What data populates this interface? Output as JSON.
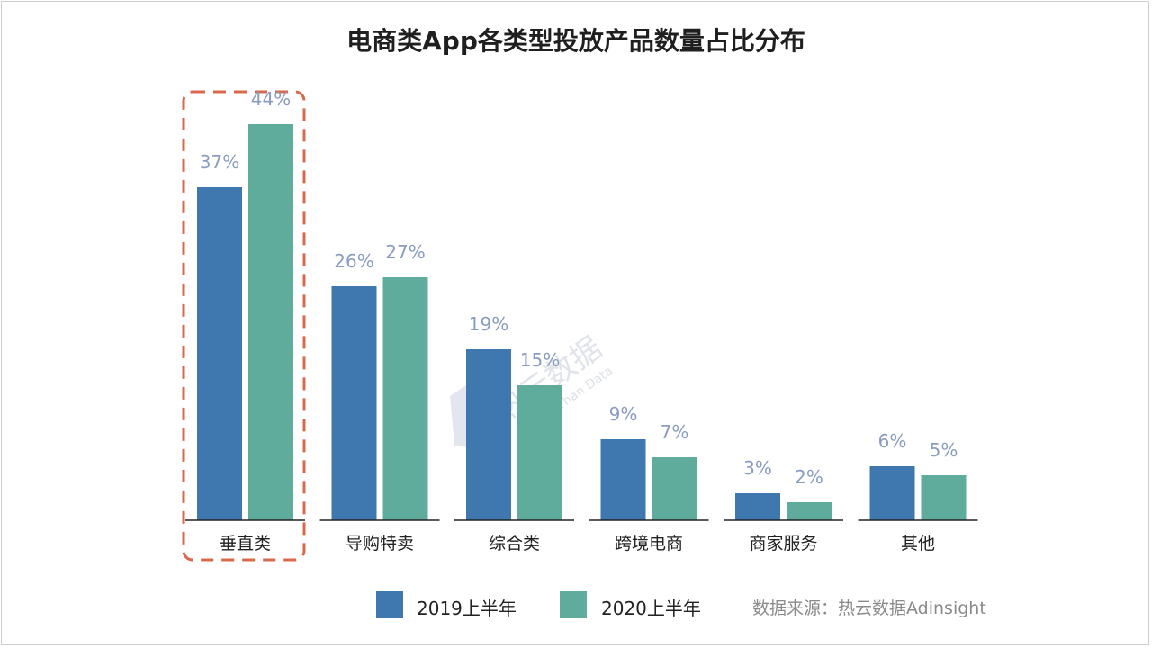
{
  "colors": {
    "s2019": "#3f78ae",
    "s2020": "#5fab9c",
    "highlight": "#d9694a",
    "axis": "#222222"
  },
  "watermark": {
    "text": "热云数据",
    "subtext": "More Than Data"
  },
  "source": "数据来源：热云数据Adinsight",
  "chart_data": {
    "type": "bar",
    "title": "电商类App各类型投放产品数量占比分布",
    "categories": [
      "垂直类",
      "导购特卖",
      "综合类",
      "跨境电商",
      "商家服务",
      "其他"
    ],
    "series": [
      {
        "name": "2019上半年",
        "values": [
          37,
          26,
          19,
          9,
          3,
          6
        ],
        "labels": [
          "37%",
          "26%",
          "19%",
          "9%",
          "3%",
          "6%"
        ]
      },
      {
        "name": "2020上半年",
        "values": [
          44,
          27,
          15,
          7,
          2,
          5
        ],
        "labels": [
          "44%",
          "27%",
          "15%",
          "7%",
          "2%",
          "5%"
        ]
      }
    ],
    "ylim": [
      0,
      50
    ],
    "highlighted_category": "垂直类",
    "legend_position": "bottom"
  }
}
